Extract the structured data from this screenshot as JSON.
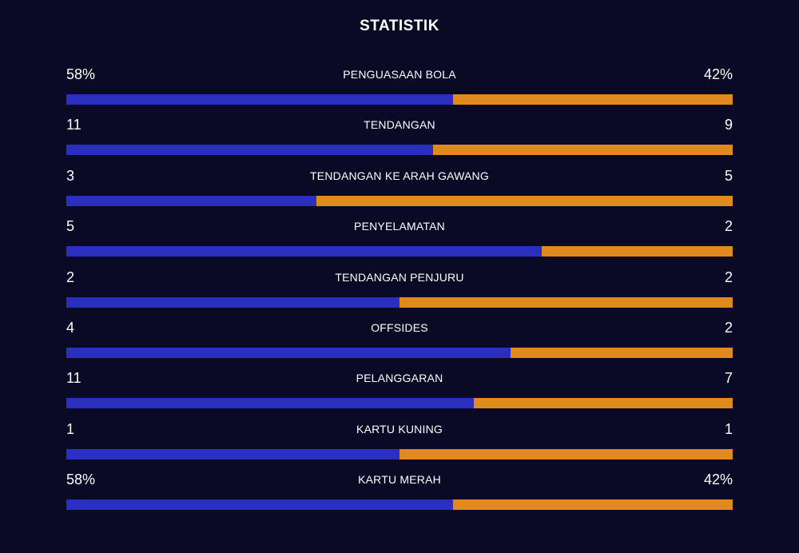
{
  "title": "STATISTIK",
  "colors": {
    "background": "#0b0a26",
    "home": "#2a2fbf",
    "away": "#e08a1e"
  },
  "stats": [
    {
      "label": "PENGUASAAN BOLA",
      "home": "58%",
      "away": "42%",
      "home_share": 0.58
    },
    {
      "label": "TENDANGAN",
      "home": "11",
      "away": "9",
      "home_share": 0.55
    },
    {
      "label": "TENDANGAN KE ARAH GAWANG",
      "home": "3",
      "away": "5",
      "home_share": 0.375
    },
    {
      "label": "PENYELAMATAN",
      "home": "5",
      "away": "2",
      "home_share": 0.714
    },
    {
      "label": "TENDANGAN PENJURU",
      "home": "2",
      "away": "2",
      "home_share": 0.5
    },
    {
      "label": "OFFSIDES",
      "home": "4",
      "away": "2",
      "home_share": 0.667
    },
    {
      "label": "PELANGGARAN",
      "home": "11",
      "away": "7",
      "home_share": 0.611
    },
    {
      "label": "KARTU KUNING",
      "home": "1",
      "away": "1",
      "home_share": 0.5
    },
    {
      "label": "KARTU MERAH",
      "home": "58%",
      "away": "42%",
      "home_share": 0.58
    }
  ]
}
